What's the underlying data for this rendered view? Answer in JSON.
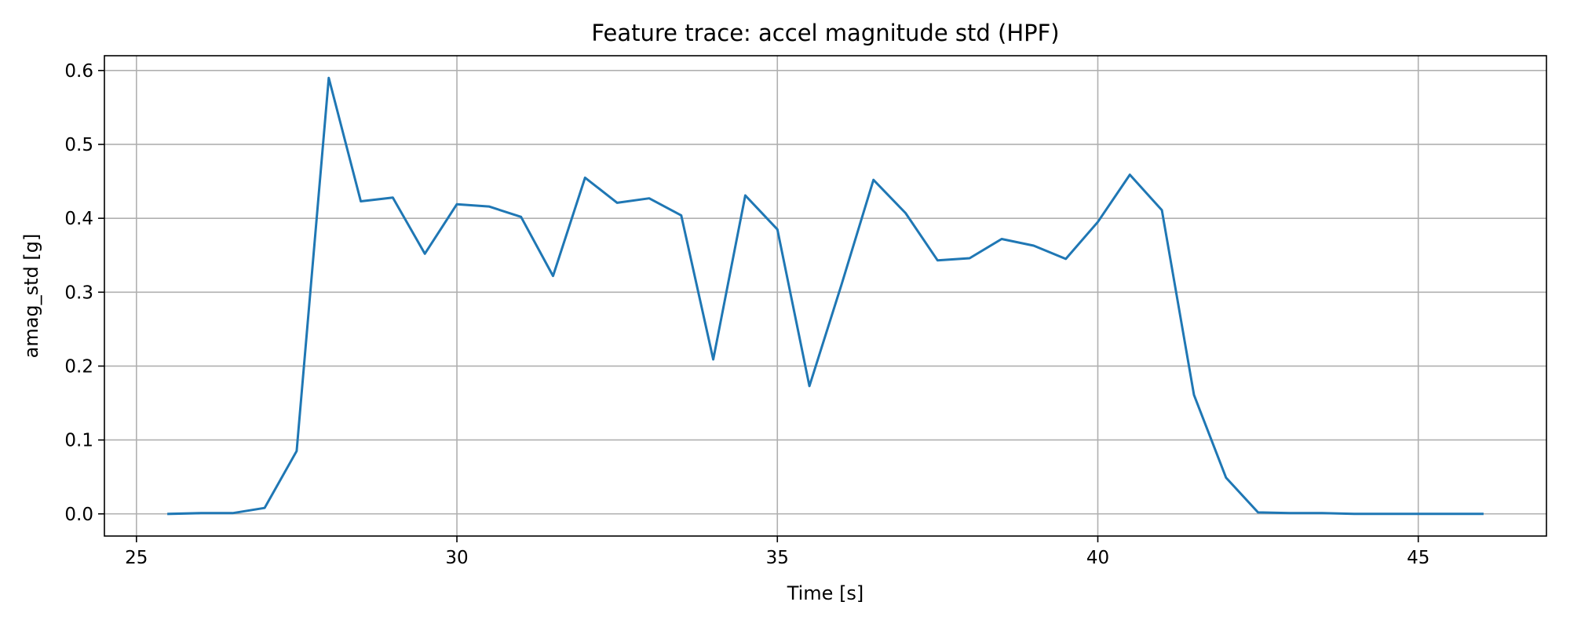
{
  "chart_data": {
    "type": "line",
    "title": "Feature trace: accel magnitude std (HPF)",
    "xlabel": "Time [s]",
    "ylabel": "amag_std [g]",
    "xlim": [
      24.5,
      47.0
    ],
    "ylim": [
      -0.03,
      0.62
    ],
    "xticks": [
      25,
      30,
      35,
      40,
      45
    ],
    "yticks": [
      0.0,
      0.1,
      0.2,
      0.3,
      0.4,
      0.5,
      0.6
    ],
    "xtick_labels": [
      "25",
      "30",
      "35",
      "40",
      "45"
    ],
    "ytick_labels": [
      "0.0",
      "0.1",
      "0.2",
      "0.3",
      "0.4",
      "0.5",
      "0.6"
    ],
    "grid": true,
    "line_color": "#1f77b4",
    "grid_color": "#b0b0b0",
    "series": [
      {
        "x": [
          25.5,
          26.0,
          26.5,
          27.0,
          27.5,
          28.0,
          28.5,
          29.0,
          29.5,
          30.0,
          30.5,
          31.0,
          31.5,
          32.0,
          32.5,
          33.0,
          33.5,
          34.0,
          34.5,
          35.0,
          35.5,
          36.0,
          36.5,
          37.0,
          37.5,
          38.0,
          38.5,
          39.0,
          39.5,
          40.0,
          40.5,
          41.0,
          41.5,
          42.0,
          42.5,
          43.0,
          43.5,
          44.0,
          44.5,
          45.0,
          45.5,
          46.0
        ],
        "values": [
          0.0,
          0.001,
          0.001,
          0.008,
          0.085,
          0.59,
          0.423,
          0.428,
          0.352,
          0.419,
          0.416,
          0.402,
          0.322,
          0.455,
          0.421,
          0.427,
          0.404,
          0.209,
          0.431,
          0.385,
          0.173,
          0.31,
          0.452,
          0.407,
          0.343,
          0.346,
          0.372,
          0.363,
          0.345,
          0.395,
          0.459,
          0.411,
          0.161,
          0.049,
          0.002,
          0.001,
          0.001,
          0.0,
          0.0,
          0.0,
          0.0,
          0.0
        ]
      }
    ]
  }
}
